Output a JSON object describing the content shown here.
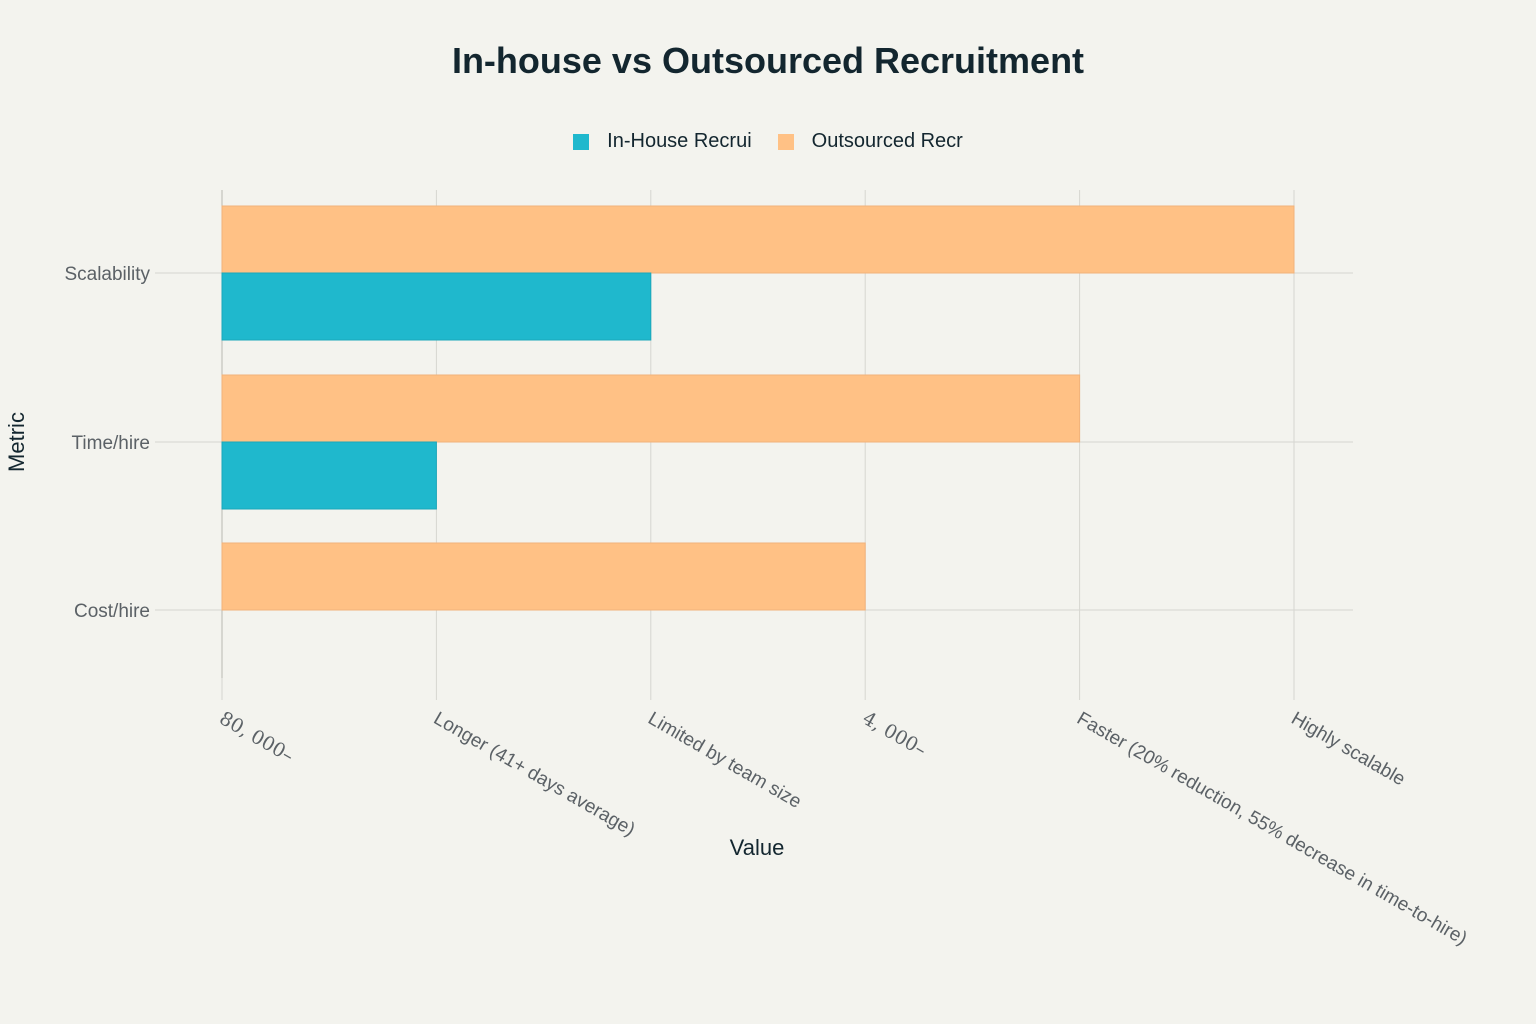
{
  "chart_data": {
    "type": "bar",
    "orientation": "horizontal",
    "title": "In-house vs Outsourced Recruitment",
    "xlabel": "Value",
    "ylabel": "Metric",
    "categories": [
      "Scalability",
      "Time/hire",
      "Cost/hire"
    ],
    "x_tick_labels": [
      "80, 000–",
      "Longer (41+ days average)",
      "Limited by team size",
      "4, 000–",
      "Faster (20% reduction, 55% decrease in time-to-hire)",
      "Highly scalable"
    ],
    "xlim": [
      0,
      5
    ],
    "series": [
      {
        "name": "In-House Recrui",
        "color": "#1fb8cd",
        "values": [
          2,
          1,
          0
        ]
      },
      {
        "name": "Outsourced Recr",
        "color": "#ffc185",
        "values": [
          5,
          4,
          3
        ]
      }
    ],
    "grid": true,
    "legend_position": "top-center"
  }
}
